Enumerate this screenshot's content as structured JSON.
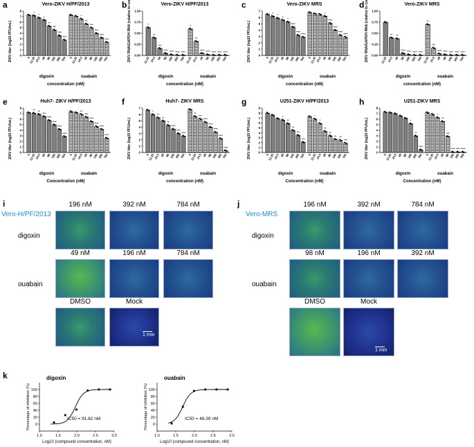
{
  "chart_data": [
    {
      "panel": "a",
      "type": "bar",
      "title": "Vero-ZIKV  H/PF/2013",
      "ylabel": "ZIKV titer (log10 PFU/mL)",
      "xlabel": "concentration (nM)",
      "ylim": [
        0,
        8
      ],
      "yticks": [
        "0",
        "1",
        "2",
        "3",
        "4",
        "5",
        "6",
        "7",
        "8"
      ],
      "groups": [
        "digoxin",
        "ouabain"
      ],
      "categories": [
        "0",
        "12.25",
        "24.5",
        "49",
        "98",
        "196",
        "392",
        "784"
      ],
      "series": [
        {
          "name": "digoxin",
          "values": [
            7.3,
            7.2,
            6.8,
            6.4,
            5.3,
            4.6,
            3.6,
            2.8
          ],
          "sig": [
            "",
            "*",
            "*",
            "*",
            "**",
            "***",
            "****",
            "****"
          ]
        },
        {
          "name": "ouabain",
          "values": [
            7.3,
            7.1,
            6.6,
            5.7,
            5.0,
            4.0,
            3.2,
            2.4
          ],
          "sig": [
            "",
            "",
            "*",
            "**",
            "***",
            "****",
            "****",
            "****"
          ]
        }
      ]
    },
    {
      "panel": "b",
      "type": "bar",
      "title": "Vero-ZIKV H/PF/2013",
      "ylabel": "ZIKV RNA/GAPDH RNA (relative to control)",
      "xlabel": "concentration (nM)",
      "ylim": [
        0,
        1.0
      ],
      "yticks": [
        "0.00",
        "0.25",
        "0.50",
        "0.75",
        "1.00"
      ],
      "groups": [
        "digoxin",
        "ouabain"
      ],
      "categories": [
        "12.25",
        "24.5",
        "49",
        "98",
        "196",
        "392",
        "784"
      ],
      "series": [
        {
          "name": "digoxin",
          "values": [
            0.63,
            0.4,
            0.16,
            0.05,
            0.02,
            0.01,
            0.01
          ],
          "sig": [
            "*",
            "**",
            "***",
            "****",
            "****",
            "****",
            "****"
          ]
        },
        {
          "name": "ouabain",
          "values": [
            0.6,
            0.32,
            0.05,
            0.02,
            0.01,
            0.01,
            0.01
          ],
          "sig": [
            "*",
            "**",
            "****",
            "****",
            "****",
            "****",
            "****"
          ]
        }
      ]
    },
    {
      "panel": "c",
      "type": "bar",
      "title": "Vero-ZIKV MRS",
      "ylabel": "ZIKV titer (log10 PFU/mL)",
      "xlabel": "concentration (nM)",
      "ylim": [
        0,
        7
      ],
      "yticks": [
        "0",
        "1",
        "2",
        "3",
        "4",
        "5",
        "6",
        "7"
      ],
      "groups": [
        "digoxin",
        "ouabain"
      ],
      "categories": [
        "0",
        "12.25",
        "24.5",
        "49",
        "98",
        "196",
        "392",
        "784"
      ],
      "series": [
        {
          "name": "digoxin",
          "values": [
            6.5,
            6.2,
            5.9,
            5.6,
            5.3,
            4.5,
            3.2,
            2.9
          ],
          "sig": [
            "",
            "*",
            "*",
            "*",
            "*",
            "****",
            "****",
            "****"
          ]
        },
        {
          "name": "ouabain",
          "values": [
            6.8,
            6.6,
            6.5,
            6.2,
            5.1,
            4.0,
            3.2,
            2.9
          ],
          "sig": [
            "",
            "",
            "",
            "*",
            "****",
            "****",
            "****",
            "****"
          ]
        }
      ]
    },
    {
      "panel": "d",
      "type": "bar",
      "title": "Vero-ZIKV MRS",
      "ylabel": "ZIKV RNA/GAPDH RNA (relative to control)",
      "xlabel": "concentration (nM)",
      "ylim": [
        0,
        1.0
      ],
      "yticks": [
        "0.00",
        "0.25",
        "0.50",
        "0.75",
        "1.00"
      ],
      "groups": [
        "digoxin",
        "ouabain"
      ],
      "categories": [
        "12.25",
        "24.5",
        "49",
        "98",
        "196",
        "392",
        "784"
      ],
      "series": [
        {
          "name": "digoxin",
          "values": [
            0.75,
            0.4,
            0.38,
            0.05,
            0.02,
            0.01,
            0.01
          ],
          "sig": [
            "",
            "**",
            "**",
            "****",
            "****",
            "****",
            "****"
          ]
        },
        {
          "name": "ouabain",
          "values": [
            0.7,
            0.17,
            0.04,
            0.02,
            0.01,
            0.01,
            0.01
          ],
          "sig": [
            "**",
            "***",
            "****",
            "****",
            "****",
            "****",
            "****"
          ]
        }
      ]
    },
    {
      "panel": "e",
      "type": "bar",
      "title": "Huh7- ZIKV H/PF/2013",
      "ylabel": "ZIKV titer (log10 PFU/mL)",
      "xlabel": "Concentration (nM)",
      "ylim": [
        0,
        8
      ],
      "yticks": [
        "0",
        "1",
        "2",
        "3",
        "4",
        "5",
        "6",
        "7",
        "8"
      ],
      "groups": [
        "digoxin",
        "ouabain"
      ],
      "categories": [
        "0",
        "12.25",
        "24.5",
        "49",
        "98",
        "196",
        "392",
        "784"
      ],
      "series": [
        {
          "name": "digoxin",
          "values": [
            7.2,
            7.1,
            6.9,
            6.5,
            5.8,
            5.0,
            4.2,
            2.9
          ],
          "sig": [
            "",
            "**",
            "**",
            "***",
            "****",
            "****",
            "****",
            "****"
          ]
        },
        {
          "name": "ouabain",
          "values": [
            7.4,
            7.2,
            6.9,
            6.4,
            5.6,
            4.7,
            4.2,
            2.6
          ],
          "sig": [
            "",
            "",
            "**",
            "***",
            "****",
            "****",
            "****",
            "****"
          ]
        }
      ]
    },
    {
      "panel": "f",
      "type": "bar",
      "title": "Huh7- ZIKV MRS",
      "ylabel": "ZIKV titer (log10 PFU/mL)",
      "xlabel": "concentration (nM)",
      "ylim": [
        0,
        7
      ],
      "yticks": [
        "0",
        "1",
        "2",
        "3",
        "4",
        "5",
        "6",
        "7"
      ],
      "groups": [
        "digoxin",
        "ouabain"
      ],
      "categories": [
        "0",
        "12.25",
        "24.5",
        "49",
        "98",
        "196",
        "392",
        "784"
      ],
      "series": [
        {
          "name": "digoxin",
          "values": [
            6.7,
            6.0,
            5.5,
            5.0,
            4.3,
            3.7,
            3.0,
            2.6
          ],
          "sig": [
            "",
            "*",
            "**",
            "**",
            "**",
            "****",
            "****",
            "****"
          ]
        },
        {
          "name": "ouabain",
          "values": [
            6.8,
            5.7,
            5.3,
            4.8,
            4.0,
            3.2,
            2.2,
            0.3
          ],
          "sig": [
            "",
            "**",
            "***",
            "****",
            "****",
            "****",
            "****",
            "****"
          ]
        }
      ]
    },
    {
      "panel": "g",
      "type": "bar",
      "title": "U251-ZIKV H/PF/2013",
      "ylabel": "ZIKV titer (log10 PFU/mL)",
      "xlabel": "Concentration (nM)",
      "ylim": [
        0,
        9
      ],
      "yticks": [
        "0",
        "1",
        "2",
        "3",
        "4",
        "5",
        "6",
        "7",
        "8",
        "9"
      ],
      "groups": [
        "digoxin",
        "ouabain"
      ],
      "categories": [
        "0",
        "12.25",
        "24.5",
        "49",
        "98",
        "196",
        "392",
        "784"
      ],
      "series": [
        {
          "name": "digoxin",
          "values": [
            8.0,
            7.6,
            6.9,
            6.6,
            5.9,
            4.5,
            3.5,
            2.1
          ],
          "sig": [
            "",
            "",
            "",
            "*",
            "**",
            "**",
            "***",
            "***"
          ]
        },
        {
          "name": "ouabain",
          "values": [
            7.3,
            6.8,
            5.9,
            4.3,
            3.4,
            2.7,
            2.5,
            1.9
          ],
          "sig": [
            "",
            "*",
            "*",
            "**",
            "**",
            "**",
            "**",
            "***"
          ]
        }
      ]
    },
    {
      "panel": "h",
      "type": "bar",
      "title": "U251-ZIKV MRS",
      "ylabel": "ZIKV titer (log10 PFU/mL)",
      "xlabel": "Concentration (nM)",
      "ylim": [
        0,
        8
      ],
      "yticks": [
        "0",
        "1",
        "2",
        "3",
        "4",
        "5",
        "6",
        "7",
        "8"
      ],
      "groups": [
        "digoxin",
        "ouabain"
      ],
      "categories": [
        "0",
        "12.25",
        "24.5",
        "49",
        "98",
        "196",
        "392",
        "784"
      ],
      "series": [
        {
          "name": "digoxin",
          "values": [
            7.3,
            7.2,
            7.0,
            6.6,
            6.2,
            5.2,
            3.0,
            0.5
          ],
          "sig": [
            "",
            "",
            "",
            "",
            "",
            "*",
            "**",
            "****"
          ]
        },
        {
          "name": "ouabain",
          "values": [
            7.2,
            6.9,
            6.3,
            5.6,
            2.9,
            0.1,
            0.1,
            0.1
          ],
          "sig": [
            "",
            "",
            "*",
            "**",
            "***",
            "****",
            "****",
            "****"
          ]
        }
      ]
    },
    {
      "panel": "k-digoxin",
      "type": "scatter",
      "title": "digoxin",
      "xlabel": "Log10 (compound concentration, nM)",
      "ylabel": "Percentage of inhibition (%)",
      "xlim": [
        1.0,
        3.0
      ],
      "ylim": [
        -20,
        120
      ],
      "xticks": [
        "1.0",
        "1.5",
        "2.0",
        "2.5",
        "3.0"
      ],
      "yticks": [
        "0",
        "20",
        "40",
        "60",
        "80",
        "100"
      ],
      "x": [
        1.39,
        1.69,
        1.99,
        2.29,
        2.59,
        2.89
      ],
      "y": [
        5,
        26,
        42,
        97,
        100,
        100
      ],
      "annotation": "IC50 = 91.82 nM",
      "ic50_log": 1.963
    },
    {
      "panel": "k-ouabain",
      "type": "scatter",
      "title": "ouabain",
      "xlabel": "Log10 (compound concentration, nM)",
      "ylabel": "Percentage of inhibition (%)",
      "xlim": [
        1.0,
        3.0
      ],
      "ylim": [
        -20,
        120
      ],
      "xticks": [
        "1.0",
        "1.5",
        "2.0",
        "2.5",
        "3.0"
      ],
      "yticks": [
        "0",
        "20",
        "40",
        "60",
        "80",
        "100"
      ],
      "x": [
        1.39,
        1.69,
        1.99,
        2.29,
        2.59,
        2.89
      ],
      "y": [
        2,
        50,
        96,
        100,
        100,
        100
      ],
      "annotation": "IC50 = 48.39 nM",
      "ic50_log": 1.685
    }
  ],
  "panel_labels": {
    "a": "a",
    "b": "b",
    "c": "c",
    "d": "d",
    "e": "e",
    "f": "f",
    "g": "g",
    "h": "h",
    "i": "i",
    "j": "j",
    "k": "k"
  },
  "group_labels": {
    "digoxin": "digoxin",
    "ouabain": "ouabain"
  },
  "imaging": {
    "i": {
      "title": "Vero-H/PF/2013",
      "row1": "digoxin",
      "row2": "ouabain",
      "row1_conc": [
        "196 nM",
        "392 nM",
        "784 nM"
      ],
      "row2_conc": [
        "49 nM",
        "196 nM",
        "784 nM"
      ],
      "row3": [
        "DMSO",
        "Mock"
      ],
      "scale": "1 mm"
    },
    "j": {
      "title": "Vero-MRS",
      "row1": "digoxin",
      "row2": "ouabain",
      "row1_conc": [
        "196 nM",
        "392 nM",
        "784 nM"
      ],
      "row2_conc": [
        "98 nM",
        "196 nM",
        "392 nM"
      ],
      "row3": [
        "DMSO",
        "Mock"
      ],
      "scale": "1 mm"
    }
  },
  "colors": {
    "accent_title": "#1a8fc8",
    "bar_dark": "#555",
    "bar_hatch": "#000"
  }
}
